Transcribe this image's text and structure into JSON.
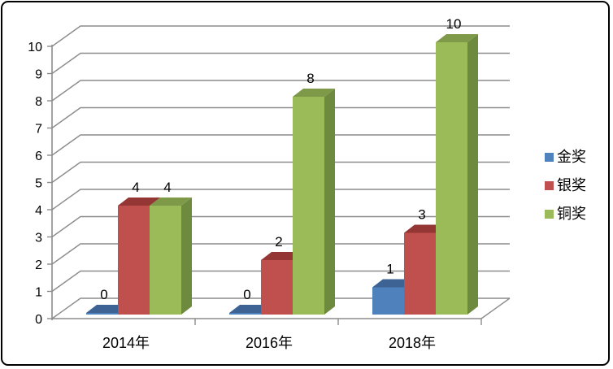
{
  "frame": {
    "border_color": "#000000",
    "background": "#ffffff"
  },
  "colors": {
    "gridline": "#8c8c8c",
    "axis": "#8c8c8c",
    "label_text": "#000000"
  },
  "chart_data": {
    "type": "bar",
    "style": "3d-clustered-column",
    "title": "",
    "xlabel": "",
    "ylabel": "",
    "categories": [
      "2014年",
      "2016年",
      "2018年"
    ],
    "series": [
      {
        "name": "金奖",
        "values": [
          0,
          0,
          1
        ],
        "color": "#4f81bd",
        "top_color": "#3c6394",
        "side_color": "#38588a"
      },
      {
        "name": "银奖",
        "values": [
          4,
          2,
          3
        ],
        "color": "#c0504d",
        "top_color": "#943634",
        "side_color": "#8c3836"
      },
      {
        "name": "铜奖",
        "values": [
          4,
          8,
          10
        ],
        "color": "#9bbb59",
        "top_color": "#7e9a48",
        "side_color": "#6d8a3e"
      }
    ],
    "data_labels": [
      [
        "0",
        "4",
        "4"
      ],
      [
        "0",
        "2",
        "8"
      ],
      [
        "1",
        "3",
        "10"
      ]
    ],
    "yticks": [
      "0",
      "1",
      "2",
      "3",
      "4",
      "5",
      "6",
      "7",
      "8",
      "9",
      "10"
    ],
    "ylim": [
      0,
      10
    ],
    "ytick_step": 1,
    "grid": true,
    "legend_position": "right"
  }
}
